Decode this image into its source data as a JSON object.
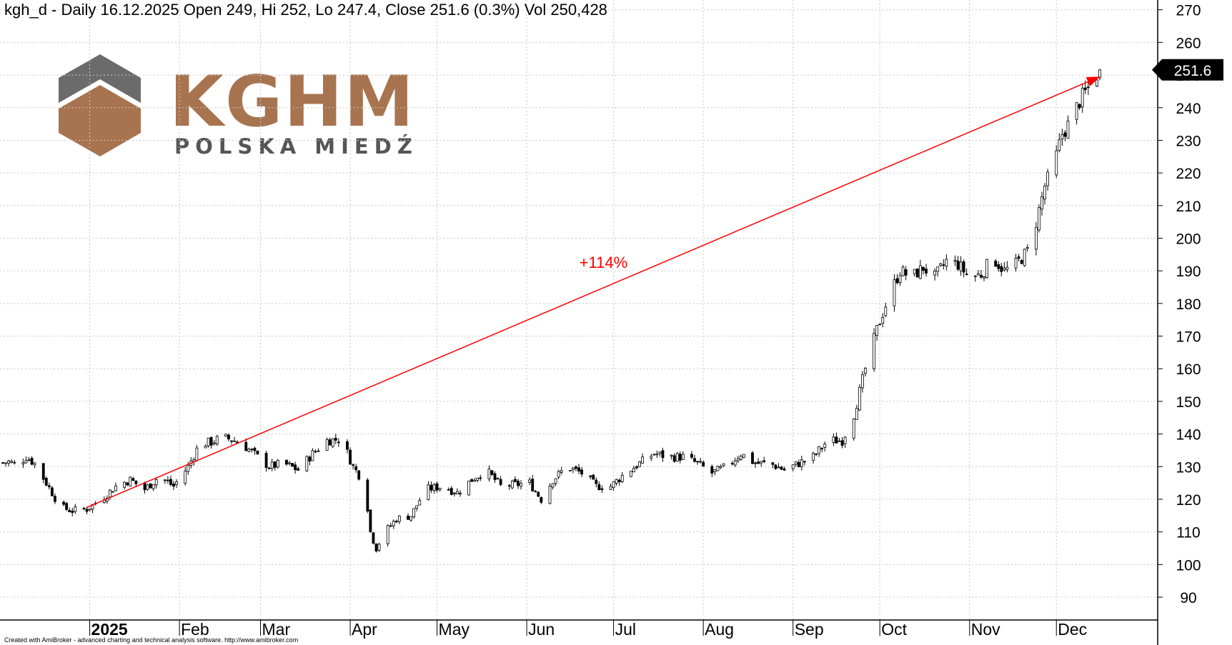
{
  "header": {
    "title": "kgh_d - Daily 16.12.2025 Open 249, Hi 252, Lo 247.4, Close 251.6 (0.3%) Vol 250,428"
  },
  "footer": {
    "credit": "Created with AmiBroker - advanced charting and technical analysis software. http://www.amibroker.com"
  },
  "logo": {
    "name": "KGHM",
    "tagline": "POLSKA MIEDŹ",
    "colors": {
      "copper": "#a87450",
      "gray": "#6b6b6b",
      "text_gray": "#555555"
    }
  },
  "annotation": {
    "label": "+114%",
    "color": "#ff0000",
    "from": {
      "date": "2024-12-31",
      "value": 117.5
    },
    "to": {
      "date": "2025-12-16",
      "value": 249.5
    }
  },
  "last_price": {
    "label": "251.6",
    "value": 251.6
  },
  "chart_data": {
    "type": "candlestick",
    "title": "kgh_d - Daily 16.12.2025 Open 249, Hi 252, Lo 247.4, Close 251.6 (0.3%) Vol 250,428",
    "ylim": [
      83,
      273
    ],
    "yticks": [
      90,
      100,
      110,
      120,
      130,
      140,
      150,
      160,
      170,
      180,
      190,
      200,
      210,
      220,
      230,
      240,
      250,
      260,
      270
    ],
    "grid": true,
    "x_ticks": [
      {
        "label": "2025",
        "date": "2025-01-01",
        "bold": true
      },
      {
        "label": "Feb",
        "date": "2025-02-01"
      },
      {
        "label": "Mar",
        "date": "2025-03-01"
      },
      {
        "label": "Apr",
        "date": "2025-04-01"
      },
      {
        "label": "May",
        "date": "2025-05-01"
      },
      {
        "label": "Jun",
        "date": "2025-06-01"
      },
      {
        "label": "Jul",
        "date": "2025-07-01"
      },
      {
        "label": "Aug",
        "date": "2025-08-01"
      },
      {
        "label": "Sep",
        "date": "2025-09-01"
      },
      {
        "label": "Oct",
        "date": "2025-10-01"
      },
      {
        "label": "Nov",
        "date": "2025-11-01"
      },
      {
        "label": "Dec",
        "date": "2025-12-01"
      }
    ],
    "x_range": [
      "2024-12-01",
      "2026-01-05"
    ],
    "price_points": [
      [
        "2024-12-01",
        131
      ],
      [
        "2024-12-04",
        131.5
      ],
      [
        "2024-12-07",
        130.5
      ],
      [
        "2024-12-10",
        133
      ],
      [
        "2024-12-13",
        131
      ],
      [
        "2024-12-15",
        128
      ],
      [
        "2024-12-17",
        125
      ],
      [
        "2024-12-19",
        122
      ],
      [
        "2024-12-22",
        117.5
      ],
      [
        "2024-12-26",
        116.5
      ],
      [
        "2024-12-31",
        117
      ],
      [
        "2025-01-05",
        120
      ],
      [
        "2025-01-10",
        124
      ],
      [
        "2025-01-15",
        126
      ],
      [
        "2025-01-20",
        123
      ],
      [
        "2025-01-25",
        127
      ],
      [
        "2025-01-30",
        124
      ],
      [
        "2025-02-04",
        130
      ],
      [
        "2025-02-08",
        137
      ],
      [
        "2025-02-12",
        137.5
      ],
      [
        "2025-02-16",
        139
      ],
      [
        "2025-02-20",
        138
      ],
      [
        "2025-02-24",
        136
      ],
      [
        "2025-02-28",
        133
      ],
      [
        "2025-03-04",
        130
      ],
      [
        "2025-03-09",
        131
      ],
      [
        "2025-03-14",
        129
      ],
      [
        "2025-03-19",
        134
      ],
      [
        "2025-03-24",
        138
      ],
      [
        "2025-03-29",
        138.5
      ],
      [
        "2025-04-02",
        130
      ],
      [
        "2025-04-06",
        125
      ],
      [
        "2025-04-08",
        110
      ],
      [
        "2025-04-10",
        105
      ],
      [
        "2025-04-13",
        110
      ],
      [
        "2025-04-17",
        114
      ],
      [
        "2025-04-22",
        115
      ],
      [
        "2025-04-27",
        123
      ],
      [
        "2025-05-03",
        124
      ],
      [
        "2025-05-08",
        122
      ],
      [
        "2025-05-13",
        126
      ],
      [
        "2025-05-18",
        129
      ],
      [
        "2025-05-23",
        124
      ],
      [
        "2025-05-28",
        124.5
      ],
      [
        "2025-06-02",
        125
      ],
      [
        "2025-06-06",
        120
      ],
      [
        "2025-06-10",
        126
      ],
      [
        "2025-06-15",
        130
      ],
      [
        "2025-06-20",
        128
      ],
      [
        "2025-06-25",
        124
      ],
      [
        "2025-06-30",
        124
      ],
      [
        "2025-07-05",
        128
      ],
      [
        "2025-07-10",
        131
      ],
      [
        "2025-07-15",
        134
      ],
      [
        "2025-07-20",
        133
      ],
      [
        "2025-07-25",
        133
      ],
      [
        "2025-07-30",
        131
      ],
      [
        "2025-08-04",
        128
      ],
      [
        "2025-08-09",
        130
      ],
      [
        "2025-08-14",
        134
      ],
      [
        "2025-08-19",
        131
      ],
      [
        "2025-08-24",
        131
      ],
      [
        "2025-08-29",
        129
      ],
      [
        "2025-09-03",
        131
      ],
      [
        "2025-09-08",
        133
      ],
      [
        "2025-09-13",
        138
      ],
      [
        "2025-09-18",
        138
      ],
      [
        "2025-09-22",
        146
      ],
      [
        "2025-09-26",
        160
      ],
      [
        "2025-09-30",
        172
      ],
      [
        "2025-10-04",
        182
      ],
      [
        "2025-10-08",
        190
      ],
      [
        "2025-10-12",
        188
      ],
      [
        "2025-10-16",
        191
      ],
      [
        "2025-10-20",
        188
      ],
      [
        "2025-10-24",
        193
      ],
      [
        "2025-10-28",
        192
      ],
      [
        "2025-11-01",
        188
      ],
      [
        "2025-11-05",
        189
      ],
      [
        "2025-11-09",
        194
      ],
      [
        "2025-11-13",
        190
      ],
      [
        "2025-11-17",
        192
      ],
      [
        "2025-11-21",
        196
      ],
      [
        "2025-11-24",
        205
      ],
      [
        "2025-11-27",
        216
      ],
      [
        "2025-11-30",
        222
      ],
      [
        "2025-12-03",
        232
      ],
      [
        "2025-12-06",
        236
      ],
      [
        "2025-12-09",
        242
      ],
      [
        "2025-12-12",
        246
      ],
      [
        "2025-12-16",
        251.6
      ]
    ]
  }
}
